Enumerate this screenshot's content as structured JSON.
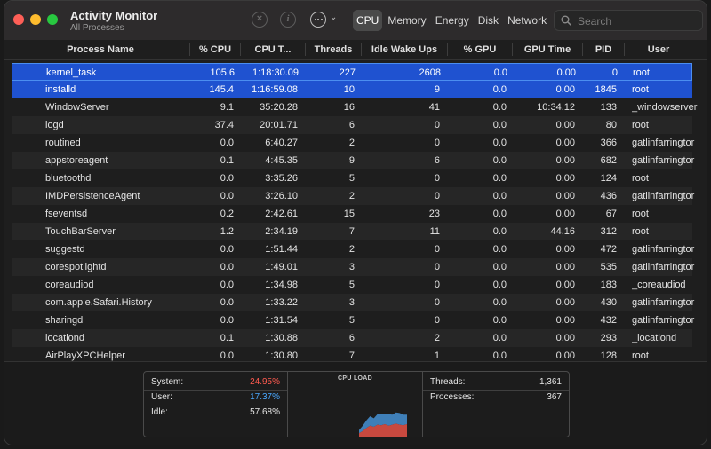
{
  "app": {
    "title": "Activity Monitor",
    "subtitle": "All Processes"
  },
  "toolbar": {
    "tabs": [
      "CPU",
      "Memory",
      "Energy",
      "Disk",
      "Network"
    ],
    "active_tab": "CPU",
    "search_placeholder": "Search"
  },
  "columns": [
    "Process Name",
    "% CPU",
    "CPU T...",
    "Threads",
    "Idle Wake Ups",
    "% GPU",
    "GPU Time",
    "PID",
    "User"
  ],
  "processes": [
    {
      "name": "kernel_task",
      "cpu": "105.6",
      "cpu_time": "1:18:30.09",
      "threads": "227",
      "idle_wake": "2608",
      "gpu": "0.0",
      "gpu_time": "0.00",
      "pid": "0",
      "user": "root"
    },
    {
      "name": "installd",
      "cpu": "145.4",
      "cpu_time": "1:16:59.08",
      "threads": "10",
      "idle_wake": "9",
      "gpu": "0.0",
      "gpu_time": "0.00",
      "pid": "1845",
      "user": "root"
    },
    {
      "name": "WindowServer",
      "cpu": "9.1",
      "cpu_time": "35:20.28",
      "threads": "16",
      "idle_wake": "41",
      "gpu": "0.0",
      "gpu_time": "10:34.12",
      "pid": "133",
      "user": "_windowserver"
    },
    {
      "name": "logd",
      "cpu": "37.4",
      "cpu_time": "20:01.71",
      "threads": "6",
      "idle_wake": "0",
      "gpu": "0.0",
      "gpu_time": "0.00",
      "pid": "80",
      "user": "root"
    },
    {
      "name": "routined",
      "cpu": "0.0",
      "cpu_time": "6:40.27",
      "threads": "2",
      "idle_wake": "0",
      "gpu": "0.0",
      "gpu_time": "0.00",
      "pid": "366",
      "user": "gatlinfarringtor"
    },
    {
      "name": "appstoreagent",
      "cpu": "0.1",
      "cpu_time": "4:45.35",
      "threads": "9",
      "idle_wake": "6",
      "gpu": "0.0",
      "gpu_time": "0.00",
      "pid": "682",
      "user": "gatlinfarringtor"
    },
    {
      "name": "bluetoothd",
      "cpu": "0.0",
      "cpu_time": "3:35.26",
      "threads": "5",
      "idle_wake": "0",
      "gpu": "0.0",
      "gpu_time": "0.00",
      "pid": "124",
      "user": "root"
    },
    {
      "name": "IMDPersistenceAgent",
      "cpu": "0.0",
      "cpu_time": "3:26.10",
      "threads": "2",
      "idle_wake": "0",
      "gpu": "0.0",
      "gpu_time": "0.00",
      "pid": "436",
      "user": "gatlinfarringtor"
    },
    {
      "name": "fseventsd",
      "cpu": "0.2",
      "cpu_time": "2:42.61",
      "threads": "15",
      "idle_wake": "23",
      "gpu": "0.0",
      "gpu_time": "0.00",
      "pid": "67",
      "user": "root"
    },
    {
      "name": "TouchBarServer",
      "cpu": "1.2",
      "cpu_time": "2:34.19",
      "threads": "7",
      "idle_wake": "11",
      "gpu": "0.0",
      "gpu_time": "44.16",
      "pid": "312",
      "user": "root"
    },
    {
      "name": "suggestd",
      "cpu": "0.0",
      "cpu_time": "1:51.44",
      "threads": "2",
      "idle_wake": "0",
      "gpu": "0.0",
      "gpu_time": "0.00",
      "pid": "472",
      "user": "gatlinfarringtor"
    },
    {
      "name": "corespotlightd",
      "cpu": "0.0",
      "cpu_time": "1:49.01",
      "threads": "3",
      "idle_wake": "0",
      "gpu": "0.0",
      "gpu_time": "0.00",
      "pid": "535",
      "user": "gatlinfarringtor"
    },
    {
      "name": "coreaudiod",
      "cpu": "0.0",
      "cpu_time": "1:34.98",
      "threads": "5",
      "idle_wake": "0",
      "gpu": "0.0",
      "gpu_time": "0.00",
      "pid": "183",
      "user": "_coreaudiod"
    },
    {
      "name": "com.apple.Safari.History",
      "cpu": "0.0",
      "cpu_time": "1:33.22",
      "threads": "3",
      "idle_wake": "0",
      "gpu": "0.0",
      "gpu_time": "0.00",
      "pid": "430",
      "user": "gatlinfarringtor"
    },
    {
      "name": "sharingd",
      "cpu": "0.0",
      "cpu_time": "1:31.54",
      "threads": "5",
      "idle_wake": "0",
      "gpu": "0.0",
      "gpu_time": "0.00",
      "pid": "432",
      "user": "gatlinfarringtor"
    },
    {
      "name": "locationd",
      "cpu": "0.1",
      "cpu_time": "1:30.88",
      "threads": "6",
      "idle_wake": "2",
      "gpu": "0.0",
      "gpu_time": "0.00",
      "pid": "293",
      "user": "_locationd"
    },
    {
      "name": "AirPlayXPCHelper",
      "cpu": "0.0",
      "cpu_time": "1:30.80",
      "threads": "7",
      "idle_wake": "1",
      "gpu": "0.0",
      "gpu_time": "0.00",
      "pid": "128",
      "user": "root"
    }
  ],
  "selected_rows": [
    0,
    1
  ],
  "summary": {
    "system_label": "System:",
    "system_value": "24.95%",
    "user_label": "User:",
    "user_value": "17.37%",
    "idle_label": "Idle:",
    "idle_value": "57.68%",
    "cpu_load_title": "CPU LOAD",
    "threads_label": "Threads:",
    "threads_value": "1,361",
    "processes_label": "Processes:",
    "processes_value": "367"
  },
  "colors": {
    "selection": "#1f52d0",
    "system": "#ff5a4f",
    "user": "#4aa8ff",
    "graph_system": "#c8493f",
    "graph_user": "#3f7fb8"
  },
  "cpu_history": {
    "system_percent": [
      8,
      12,
      18,
      22,
      20,
      24,
      23,
      25,
      22,
      24,
      26,
      24,
      23,
      25
    ],
    "user_percent": [
      6,
      10,
      14,
      18,
      16,
      20,
      22,
      20,
      22,
      19,
      21,
      22,
      20,
      18
    ]
  }
}
